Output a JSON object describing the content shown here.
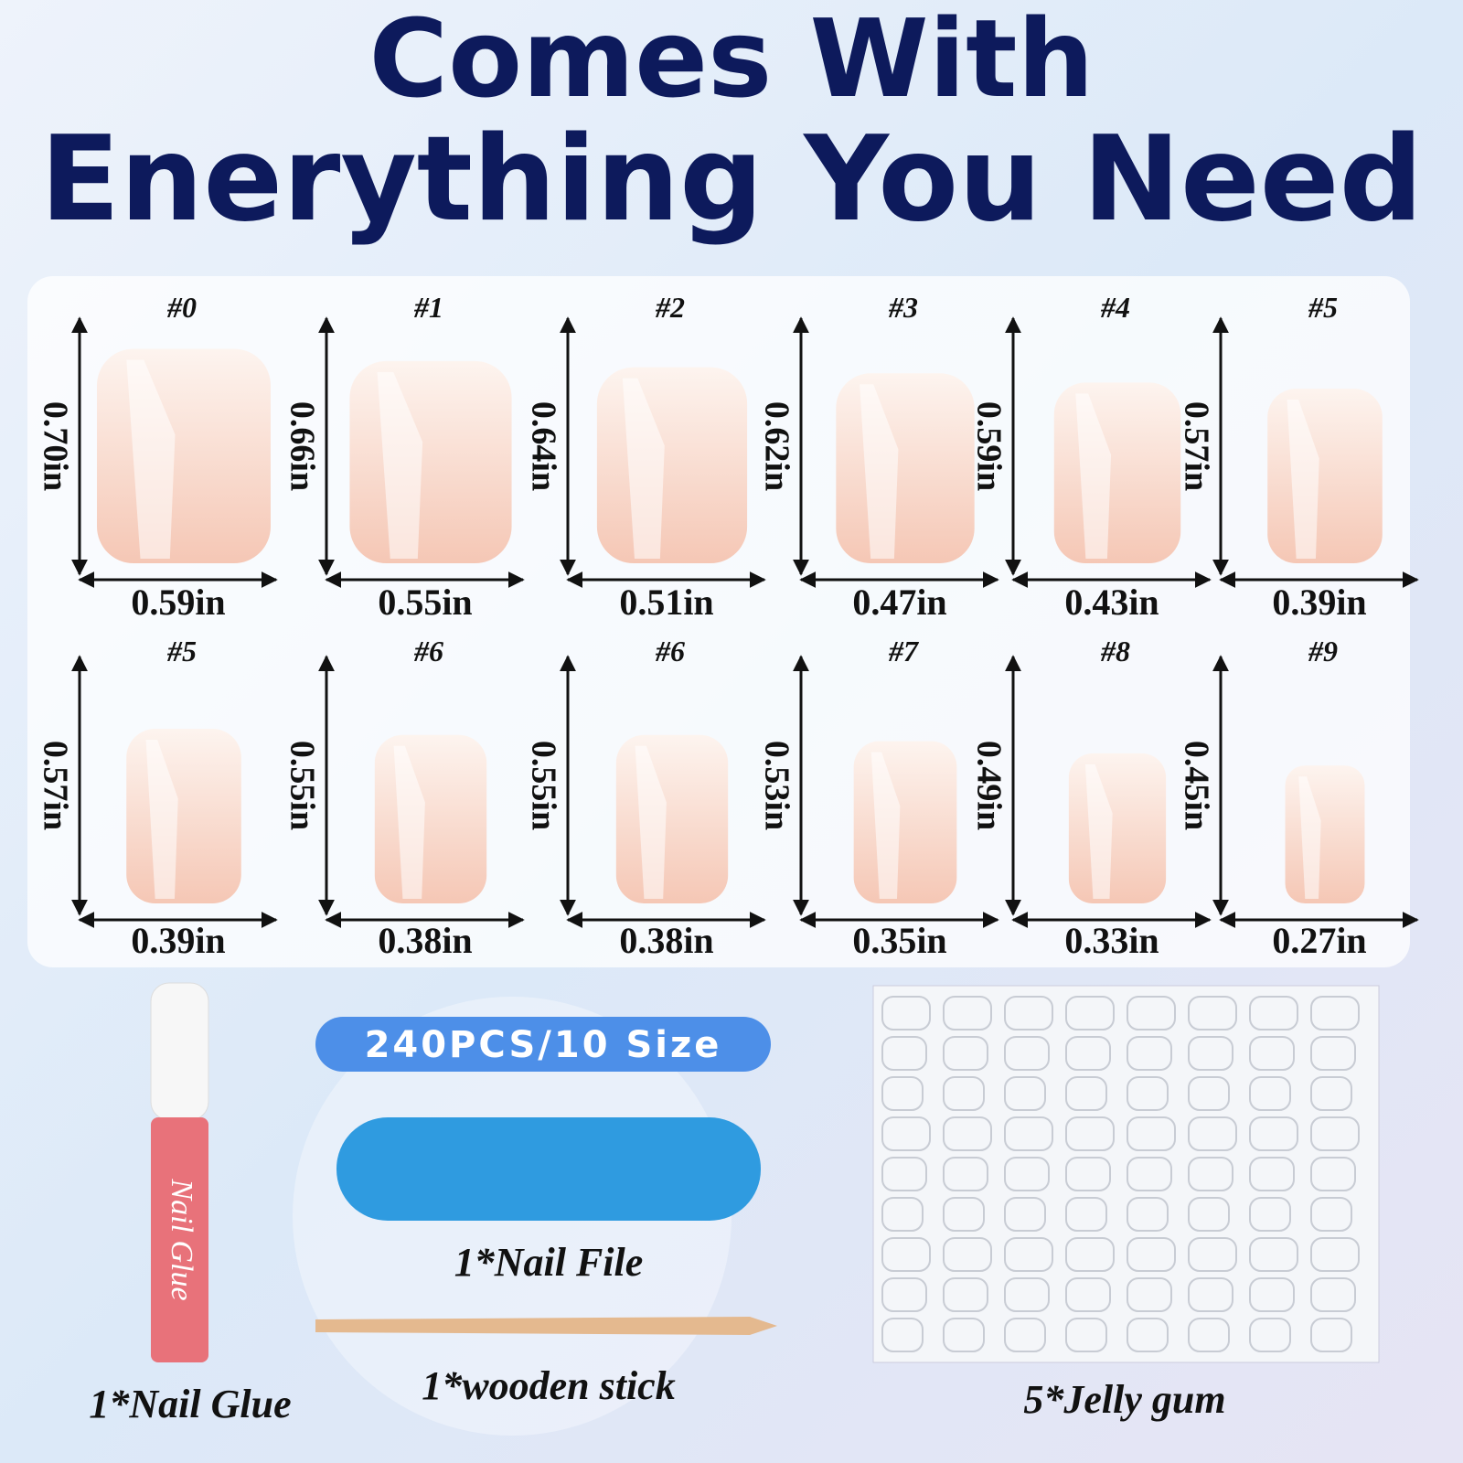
{
  "header": {
    "title_line1": "Comes With",
    "title_line2": "Enerything You Need"
  },
  "sizes": {
    "rows": [
      [
        {
          "label": "#0",
          "height": "0.70in",
          "width": "0.59in"
        },
        {
          "label": "#1",
          "height": "0.66in",
          "width": "0.55in"
        },
        {
          "label": "#2",
          "height": "0.64in",
          "width": "0.51in"
        },
        {
          "label": "#3",
          "height": "0.62in",
          "width": "0.47in"
        },
        {
          "label": "#4",
          "height": "0.59in",
          "width": "0.43in"
        },
        {
          "label": "#5",
          "height": "0.57in",
          "width": "0.39in"
        }
      ],
      [
        {
          "label": "#5",
          "height": "0.57in",
          "width": "0.39in"
        },
        {
          "label": "#6",
          "height": "0.55in",
          "width": "0.38in"
        },
        {
          "label": "#6",
          "height": "0.55in",
          "width": "0.38in"
        },
        {
          "label": "#7",
          "height": "0.53in",
          "width": "0.35in"
        },
        {
          "label": "#8",
          "height": "0.49in",
          "width": "0.33in"
        },
        {
          "label": "#9",
          "height": "0.45in",
          "width": "0.27in"
        }
      ]
    ]
  },
  "badge": "240PCS/10 Size",
  "items": {
    "glue": "1*Nail Glue",
    "glue_tube_text": "Nail Glue",
    "file": "1*Nail File",
    "stick": "1*wooden stick",
    "jelly": "5*Jelly gum"
  }
}
